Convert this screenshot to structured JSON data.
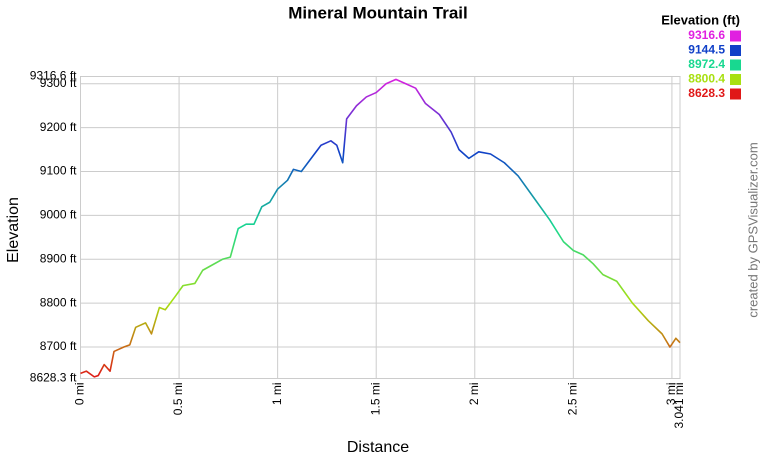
{
  "chart_data": {
    "type": "line",
    "title": "Mineral Mountain Trail",
    "x_label": "Distance",
    "y_label": "Elevation",
    "watermark": "created by GPSVisualizer.com",
    "x": [
      0,
      0.03,
      0.07,
      0.09,
      0.12,
      0.15,
      0.17,
      0.22,
      0.25,
      0.28,
      0.33,
      0.36,
      0.4,
      0.43,
      0.48,
      0.52,
      0.58,
      0.62,
      0.66,
      0.72,
      0.76,
      0.8,
      0.84,
      0.88,
      0.92,
      0.96,
      1.0,
      1.05,
      1.08,
      1.12,
      1.17,
      1.22,
      1.27,
      1.3,
      1.33,
      1.35,
      1.4,
      1.45,
      1.5,
      1.55,
      1.6,
      1.65,
      1.7,
      1.75,
      1.82,
      1.88,
      1.92,
      1.97,
      2.02,
      2.08,
      2.15,
      2.22,
      2.3,
      2.38,
      2.45,
      2.5,
      2.55,
      2.6,
      2.65,
      2.72,
      2.8,
      2.88,
      2.95,
      2.99,
      3.02,
      3.041
    ],
    "values": [
      8640,
      8645,
      8632,
      8635,
      8660,
      8645,
      8690,
      8700,
      8705,
      8745,
      8755,
      8730,
      8790,
      8785,
      8815,
      8840,
      8845,
      8875,
      8885,
      8900,
      8905,
      8970,
      8980,
      8980,
      9020,
      9030,
      9060,
      9080,
      9105,
      9100,
      9130,
      9160,
      9170,
      9160,
      9120,
      9220,
      9250,
      9270,
      9280,
      9300,
      9310,
      9300,
      9290,
      9255,
      9230,
      9190,
      9150,
      9130,
      9145,
      9140,
      9120,
      9090,
      9040,
      8990,
      8940,
      8920,
      8910,
      8890,
      8865,
      8850,
      8800,
      8760,
      8730,
      8700,
      8720,
      8710
    ],
    "xlim": [
      0,
      3.041
    ],
    "ylim": [
      8628.3,
      9316.6
    ],
    "xticks": [
      {
        "value": 0,
        "label": "0 mi"
      },
      {
        "value": 0.5,
        "label": "0.5 mi"
      },
      {
        "value": 1,
        "label": "1 mi"
      },
      {
        "value": 1.5,
        "label": "1.5 mi"
      },
      {
        "value": 2,
        "label": "2 mi"
      },
      {
        "value": 2.5,
        "label": "2.5 mi"
      },
      {
        "value": 3,
        "label": "3 mi"
      },
      {
        "value": 3.041,
        "label": "3.041 mi"
      }
    ],
    "yticks": [
      {
        "value": 8628.3,
        "label": "8628.3 ft"
      },
      {
        "value": 8700,
        "label": "8700 ft"
      },
      {
        "value": 8800,
        "label": "8800 ft"
      },
      {
        "value": 8900,
        "label": "8900 ft"
      },
      {
        "value": 9000,
        "label": "9000 ft"
      },
      {
        "value": 9100,
        "label": "9100 ft"
      },
      {
        "value": 9200,
        "label": "9200 ft"
      },
      {
        "value": 9300,
        "label": "9300 ft"
      },
      {
        "value": 9316.6,
        "label": "9316.6 ft"
      }
    ],
    "grid": true,
    "legend": {
      "title": "Elevation (ft)",
      "entries": [
        {
          "value": 9316.6,
          "color": "#e020e0"
        },
        {
          "value": 9144.5,
          "color": "#1040c8"
        },
        {
          "value": 8972.4,
          "color": "#18d890"
        },
        {
          "value": 8800.4,
          "color": "#a8e010"
        },
        {
          "value": 8628.3,
          "color": "#e01818"
        }
      ]
    }
  }
}
